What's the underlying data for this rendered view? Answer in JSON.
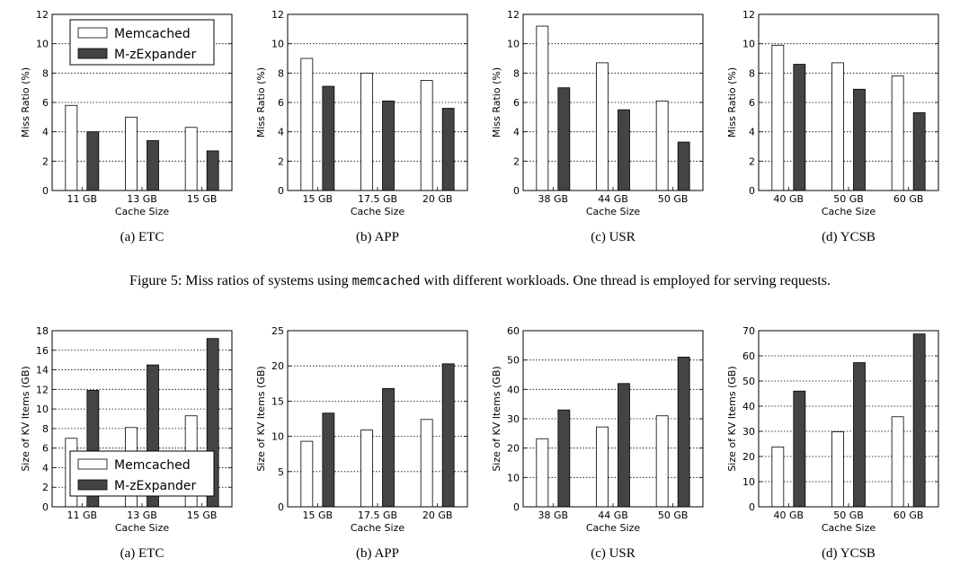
{
  "figure5": {
    "caption_prefix": "Figure 5: Miss ratios of systems using ",
    "caption_code": "memcached",
    "caption_suffix": " with different workloads. One thread is employed for serving requests."
  },
  "legend": {
    "series": [
      "Memcached",
      "M-zExpander"
    ],
    "colors": {
      "Memcached": "#ffffff",
      "M-zExpander": "#444444"
    }
  },
  "chart_data": [
    {
      "type": "bar",
      "row": "top",
      "subcaption": "(a) ETC",
      "xlabel": "Cache Size",
      "ylabel": "Miss Ratio (%)",
      "ylim": [
        0,
        12
      ],
      "yticks": [
        0,
        2,
        4,
        6,
        8,
        10,
        12
      ],
      "grid": true,
      "legend": "top-left",
      "categories": [
        "11 GB",
        "13 GB",
        "15 GB"
      ],
      "series": [
        {
          "name": "Memcached",
          "values": [
            5.8,
            5.0,
            4.3
          ]
        },
        {
          "name": "M-zExpander",
          "values": [
            4.0,
            3.4,
            2.7
          ]
        }
      ]
    },
    {
      "type": "bar",
      "row": "top",
      "subcaption": "(b) APP",
      "xlabel": "Cache Size",
      "ylabel": "Miss Ratio (%)",
      "ylim": [
        0,
        12
      ],
      "yticks": [
        0,
        2,
        4,
        6,
        8,
        10,
        12
      ],
      "grid": true,
      "categories": [
        "15 GB",
        "17.5 GB",
        "20 GB"
      ],
      "series": [
        {
          "name": "Memcached",
          "values": [
            9.0,
            8.0,
            7.5
          ]
        },
        {
          "name": "M-zExpander",
          "values": [
            7.1,
            6.1,
            5.6
          ]
        }
      ]
    },
    {
      "type": "bar",
      "row": "top",
      "subcaption": "(c) USR",
      "xlabel": "Cache Size",
      "ylabel": "Miss Ratio (%)",
      "ylim": [
        0,
        12
      ],
      "yticks": [
        0,
        2,
        4,
        6,
        8,
        10,
        12
      ],
      "grid": true,
      "categories": [
        "38 GB",
        "44 GB",
        "50 GB"
      ],
      "series": [
        {
          "name": "Memcached",
          "values": [
            11.2,
            8.7,
            6.1
          ]
        },
        {
          "name": "M-zExpander",
          "values": [
            7.0,
            5.5,
            3.3
          ]
        }
      ]
    },
    {
      "type": "bar",
      "row": "top",
      "subcaption": "(d) YCSB",
      "xlabel": "Cache Size",
      "ylabel": "Miss Ratio (%)",
      "ylim": [
        0,
        12
      ],
      "yticks": [
        0,
        2,
        4,
        6,
        8,
        10,
        12
      ],
      "grid": true,
      "categories": [
        "40 GB",
        "50 GB",
        "60 GB"
      ],
      "series": [
        {
          "name": "Memcached",
          "values": [
            9.9,
            8.7,
            7.8
          ]
        },
        {
          "name": "M-zExpander",
          "values": [
            8.6,
            6.9,
            5.3
          ]
        }
      ]
    },
    {
      "type": "bar",
      "row": "bottom",
      "subcaption": "(a) ETC",
      "xlabel": "Cache Size",
      "ylabel": "Size of KV Items (GB)",
      "ylim": [
        0,
        18
      ],
      "yticks": [
        0,
        2,
        4,
        6,
        8,
        10,
        12,
        14,
        16,
        18
      ],
      "grid": true,
      "legend": "bottom-left",
      "categories": [
        "11 GB",
        "13 GB",
        "15 GB"
      ],
      "series": [
        {
          "name": "Memcached",
          "values": [
            7.0,
            8.1,
            9.3
          ]
        },
        {
          "name": "M-zExpander",
          "values": [
            11.9,
            14.5,
            17.2
          ]
        }
      ]
    },
    {
      "type": "bar",
      "row": "bottom",
      "subcaption": "(b) APP",
      "xlabel": "Cache Size",
      "ylabel": "Size of KV Items (GB)",
      "ylim": [
        0,
        25
      ],
      "yticks": [
        0,
        5,
        10,
        15,
        20,
        25
      ],
      "grid": true,
      "categories": [
        "15 GB",
        "17.5 GB",
        "20 GB"
      ],
      "series": [
        {
          "name": "Memcached",
          "values": [
            9.3,
            10.9,
            12.4
          ]
        },
        {
          "name": "M-zExpander",
          "values": [
            13.3,
            16.8,
            20.3
          ]
        }
      ]
    },
    {
      "type": "bar",
      "row": "bottom",
      "subcaption": "(c) USR",
      "xlabel": "Cache Size",
      "ylabel": "Size of KV Items (GB)",
      "ylim": [
        0,
        60
      ],
      "yticks": [
        0,
        10,
        20,
        30,
        40,
        50,
        60
      ],
      "grid": true,
      "categories": [
        "38 GB",
        "44 GB",
        "50 GB"
      ],
      "series": [
        {
          "name": "Memcached",
          "values": [
            23.2,
            27.2,
            31.0
          ]
        },
        {
          "name": "M-zExpander",
          "values": [
            33.0,
            42.0,
            51.0
          ]
        }
      ]
    },
    {
      "type": "bar",
      "row": "bottom",
      "subcaption": "(d) YCSB",
      "xlabel": "Cache Size",
      "ylabel": "Size of KV Items (GB)",
      "ylim": [
        0,
        70
      ],
      "yticks": [
        0,
        10,
        20,
        30,
        40,
        50,
        60,
        70
      ],
      "grid": true,
      "categories": [
        "40 GB",
        "50 GB",
        "60 GB"
      ],
      "series": [
        {
          "name": "Memcached",
          "values": [
            23.8,
            29.8,
            35.8
          ]
        },
        {
          "name": "M-zExpander",
          "values": [
            46.0,
            57.3,
            68.7
          ]
        }
      ]
    }
  ]
}
